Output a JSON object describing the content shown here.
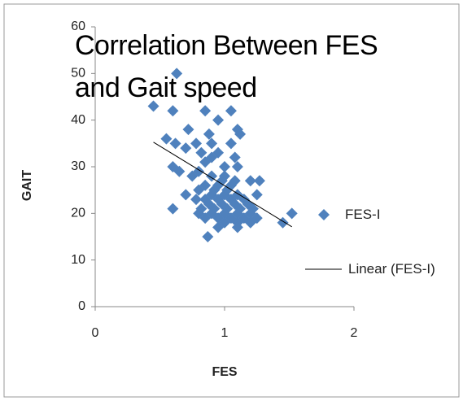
{
  "chart_data": {
    "type": "scatter",
    "title": "Correlation Between FES and Gait speed",
    "x_label": "FES",
    "y_label": "GAIT",
    "xlim": [
      0,
      2
    ],
    "xticks": [
      0,
      1,
      2
    ],
    "ylim": [
      0,
      60
    ],
    "yticks": [
      0,
      10,
      20,
      30,
      40,
      50,
      60
    ],
    "series": [
      {
        "name": "FES-I",
        "color": "#4f81bd",
        "x": [
          0.63,
          0.45,
          0.6,
          0.85,
          1.05,
          0.95,
          0.72,
          1.1,
          1.12,
          0.88,
          0.55,
          0.62,
          0.78,
          0.9,
          1.05,
          0.7,
          0.82,
          0.95,
          1.08,
          0.85,
          1.1,
          0.6,
          0.65,
          0.8,
          0.75,
          0.9,
          1.0,
          1.2,
          1.27,
          0.85,
          0.95,
          1.05,
          0.8,
          0.7,
          0.9,
          1.0,
          1.1,
          1.25,
          0.78,
          0.85,
          0.95,
          1.05,
          1.15,
          0.88,
          0.98,
          1.08,
          1.18,
          0.6,
          0.82,
          0.92,
          1.02,
          1.12,
          1.22,
          0.8,
          0.9,
          1.0,
          1.1,
          1.2,
          1.52,
          0.85,
          0.95,
          1.05,
          1.15,
          1.25,
          1.45,
          1.0,
          1.1,
          1.2,
          0.95,
          1.1,
          0.87,
          1.0,
          0.9,
          0.98,
          1.08,
          0.92,
          1.02
        ],
        "values": [
          50,
          43,
          42,
          42,
          42,
          40,
          38,
          38,
          37,
          37,
          36,
          35,
          35,
          35,
          35,
          34,
          33,
          33,
          32,
          31,
          30,
          30,
          29,
          29,
          28,
          28,
          28,
          27,
          27,
          26,
          26,
          26,
          25,
          24,
          24,
          24,
          24,
          24,
          23,
          23,
          23,
          23,
          23,
          22,
          22,
          22,
          22,
          21,
          21,
          21,
          21,
          21,
          21,
          20,
          20,
          20,
          20,
          20,
          20,
          19,
          19,
          19,
          19,
          19,
          18,
          18,
          18,
          18,
          17,
          17,
          15,
          30,
          32,
          27,
          27,
          25,
          25
        ]
      }
    ],
    "trendline": {
      "name": "Linear (FES-I)",
      "type": "linear",
      "color": "#000000"
    }
  }
}
